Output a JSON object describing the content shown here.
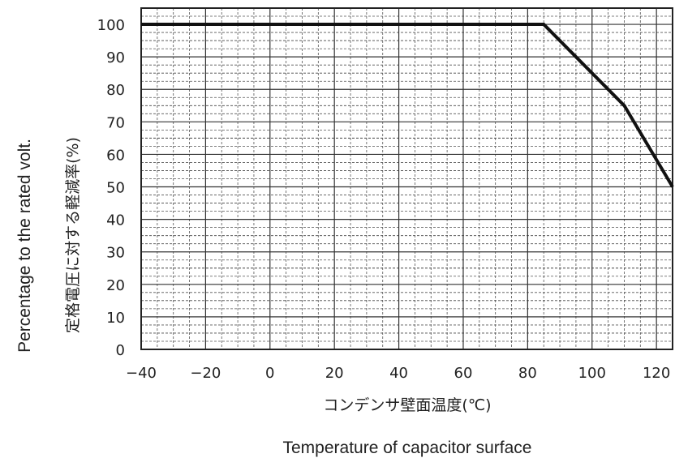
{
  "chart_data": {
    "type": "line",
    "title": "",
    "xlabel": "コンデンサ壁面温度(℃)",
    "xlabel_en": "Temperature of capacitor surface",
    "ylabel": "定格電圧に対する軽減率(%)",
    "ylabel_en": "Percentage to the rated volt.",
    "xlim": [
      -40,
      125
    ],
    "ylim": [
      0,
      105
    ],
    "x_ticks": [
      -40,
      -20,
      0,
      20,
      40,
      60,
      80,
      100,
      120
    ],
    "y_ticks": [
      0,
      10,
      20,
      30,
      40,
      50,
      60,
      70,
      80,
      90,
      100
    ],
    "x_tick_labels": [
      "−40",
      "−20",
      "0",
      "20",
      "40",
      "60",
      "80",
      "100",
      "120"
    ],
    "y_tick_labels": [
      "0",
      "10",
      "20",
      "30",
      "40",
      "50",
      "60",
      "70",
      "80",
      "90",
      "100"
    ],
    "grid": true,
    "series": [
      {
        "x": [
          -40,
          85,
          110,
          125
        ],
        "y": [
          100,
          100,
          75,
          50
        ],
        "color": "#111111"
      }
    ]
  }
}
